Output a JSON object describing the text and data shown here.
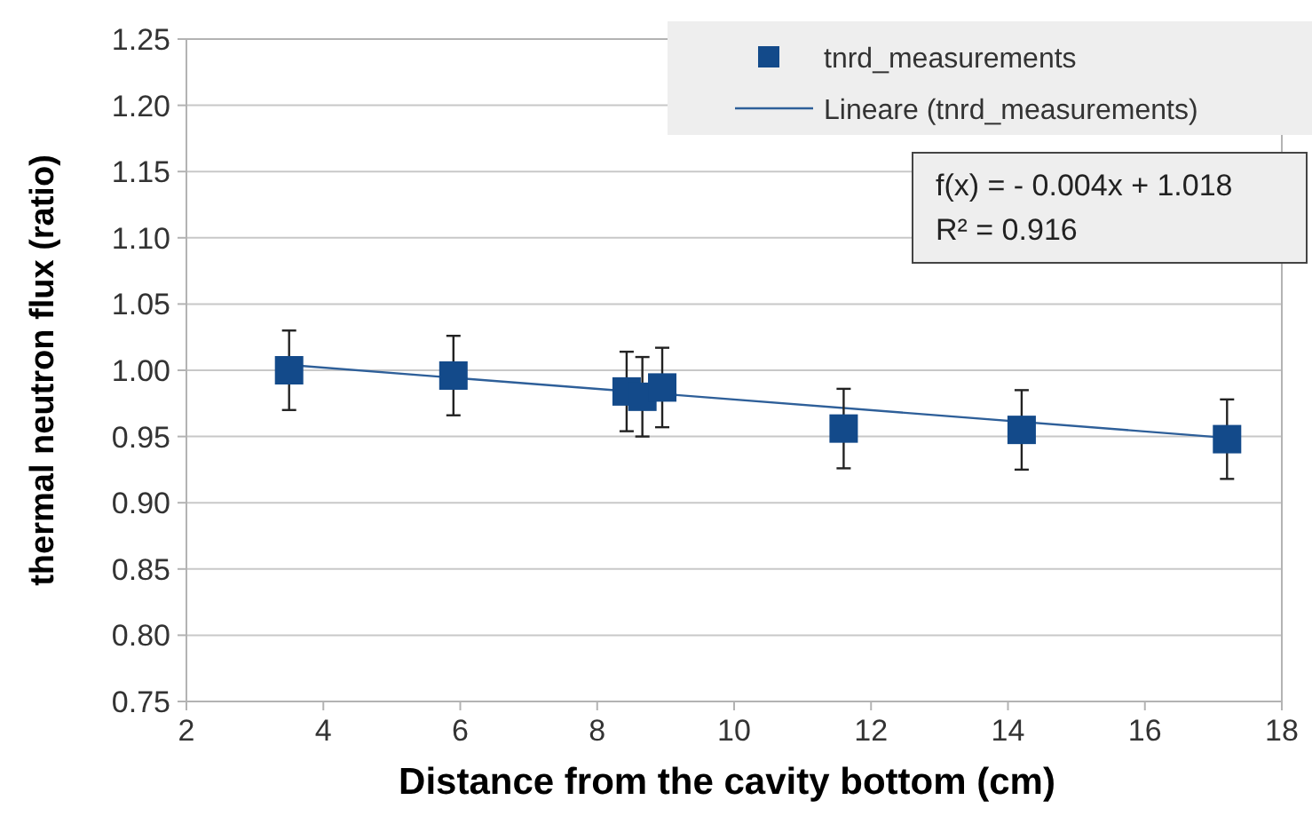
{
  "chart_data": {
    "type": "scatter",
    "xlabel": "Distance from the cavity bottom (cm)",
    "ylabel": "thermal neutron flux (ratio)",
    "xlim": [
      2,
      18
    ],
    "xticks": [
      2,
      4,
      6,
      8,
      10,
      12,
      14,
      16,
      18
    ],
    "ylim": [
      0.75,
      1.25
    ],
    "yticks": [
      {
        "value": 0.75,
        "label": "0.75"
      },
      {
        "value": 0.8,
        "label": "0.80"
      },
      {
        "value": 0.85,
        "label": "0.85"
      },
      {
        "value": 0.9,
        "label": "0.90"
      },
      {
        "value": 0.95,
        "label": "0.95"
      },
      {
        "value": 1.0,
        "label": "1.00"
      },
      {
        "value": 1.05,
        "label": "1.05"
      },
      {
        "value": 1.1,
        "label": "1.10"
      },
      {
        "value": 1.15,
        "label": "1.15"
      },
      {
        "value": 1.2,
        "label": "1.20"
      },
      {
        "value": 1.25,
        "label": "1.25"
      }
    ],
    "grid": "y",
    "legend": "top right",
    "marker": "square",
    "series": [
      {
        "name": "tnrd_measurements",
        "color": "#134a8a",
        "x": [
          3.5,
          5.9,
          8.43,
          8.66,
          8.95,
          11.6,
          14.2,
          17.2
        ],
        "values": [
          1.0,
          0.996,
          0.984,
          0.98,
          0.987,
          0.956,
          0.955,
          0.948
        ],
        "errors": [
          0.03,
          0.03,
          0.03,
          0.03,
          0.03,
          0.03,
          0.03,
          0.03
        ]
      },
      {
        "name": "Lineare (tnrd_measurements)",
        "type": "line",
        "color": "#2e5f99",
        "x": [
          3.5,
          17.2
        ],
        "values": [
          1.004,
          0.949
        ],
        "marker": "none",
        "line_style": "solid"
      }
    ],
    "annotations": [
      "f(x) =  - 0.004x + 1.018",
      "R² = 0.916"
    ]
  }
}
